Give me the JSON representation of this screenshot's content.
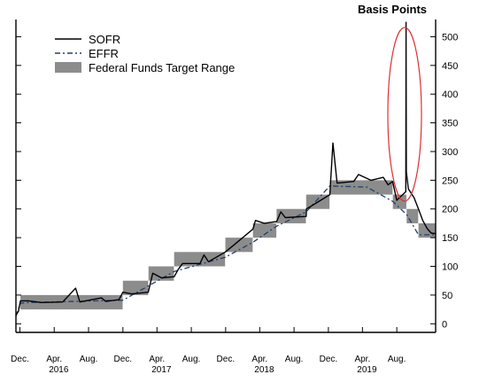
{
  "chart_data": {
    "type": "line",
    "unit_label": "Basis Points",
    "title": "",
    "xlabel": "",
    "ylabel": "",
    "ylim": [
      -15,
      530
    ],
    "y_ticks": [
      0,
      50,
      100,
      150,
      200,
      250,
      300,
      350,
      400,
      450,
      500
    ],
    "x_ticks_months": [
      "Dec.",
      "Apr.",
      "Aug.",
      "Dec.",
      "Apr.",
      "Aug.",
      "Dec.",
      "Apr.",
      "Aug.",
      "Dec.",
      "Apr.",
      "Aug."
    ],
    "x_ticks_years": [
      "2016",
      "2017",
      "2018",
      "2019"
    ],
    "x_range": [
      "2015-12-01",
      "2019-12-31"
    ],
    "legend_position": "top-left",
    "series": [
      {
        "name": "SOFR",
        "style": "solid",
        "color": "#000000",
        "x": [
          "2015-12-01",
          "2015-12-10",
          "2015-12-17",
          "2016-01-15",
          "2016-03-01",
          "2016-05-15",
          "2016-06-30",
          "2016-07-15",
          "2016-09-30",
          "2016-10-15",
          "2016-12-01",
          "2016-12-15",
          "2017-01-15",
          "2017-03-15",
          "2017-03-31",
          "2017-05-01",
          "2017-06-15",
          "2017-06-30",
          "2017-07-15",
          "2017-09-15",
          "2017-09-29",
          "2017-10-15",
          "2017-12-14",
          "2018-01-15",
          "2018-03-22",
          "2018-03-31",
          "2018-05-01",
          "2018-06-14",
          "2018-06-29",
          "2018-07-15",
          "2018-09-27",
          "2018-09-28",
          "2018-10-15",
          "2018-12-20",
          "2018-12-31",
          "2019-01-15",
          "2019-03-15",
          "2019-04-01",
          "2019-05-15",
          "2019-06-28",
          "2019-07-15",
          "2019-07-31",
          "2019-08-15",
          "2019-09-16",
          "2019-09-17",
          "2019-09-18",
          "2019-09-25",
          "2019-10-15",
          "2019-10-31",
          "2019-11-15",
          "2019-12-02",
          "2019-12-15",
          "2019-12-31"
        ],
        "y": [
          15,
          22,
          40,
          40,
          37,
          38,
          62,
          38,
          45,
          39,
          42,
          55,
          52,
          55,
          88,
          80,
          82,
          95,
          105,
          105,
          120,
          108,
          125,
          138,
          165,
          180,
          175,
          178,
          195,
          185,
          187,
          200,
          205,
          225,
          315,
          245,
          248,
          260,
          250,
          255,
          242,
          248,
          215,
          230,
          525,
          265,
          235,
          220,
          200,
          180,
          165,
          158,
          157
        ]
      },
      {
        "name": "EFFR",
        "style": "dashed",
        "color": "#1f3f6e",
        "x": [
          "2015-12-01",
          "2015-12-17",
          "2016-01-15",
          "2016-12-15",
          "2017-03-16",
          "2017-06-15",
          "2017-12-14",
          "2018-03-22",
          "2018-06-14",
          "2018-09-27",
          "2018-12-20",
          "2019-05-01",
          "2019-08-01",
          "2019-09-19",
          "2019-10-31",
          "2019-12-31"
        ],
        "y": [
          13,
          36,
          37,
          41,
          66,
          91,
          116,
          142,
          170,
          195,
          240,
          238,
          213,
          190,
          155,
          155
        ]
      }
    ],
    "band": {
      "name": "Federal Funds Target Range",
      "color": "#8c8c8c",
      "segments": [
        {
          "start": "2015-12-17",
          "end": "2016-12-14",
          "low": 25,
          "high": 50
        },
        {
          "start": "2016-12-15",
          "end": "2017-03-15",
          "low": 50,
          "high": 75
        },
        {
          "start": "2017-03-16",
          "end": "2017-06-14",
          "low": 75,
          "high": 100
        },
        {
          "start": "2017-06-15",
          "end": "2017-12-13",
          "low": 100,
          "high": 125
        },
        {
          "start": "2017-12-14",
          "end": "2018-03-21",
          "low": 125,
          "high": 150
        },
        {
          "start": "2018-03-22",
          "end": "2018-06-13",
          "low": 150,
          "high": 175
        },
        {
          "start": "2018-06-14",
          "end": "2018-09-26",
          "low": 175,
          "high": 200
        },
        {
          "start": "2018-09-27",
          "end": "2018-12-19",
          "low": 200,
          "high": 225
        },
        {
          "start": "2018-12-20",
          "end": "2019-07-31",
          "low": 225,
          "high": 250
        },
        {
          "start": "2019-08-01",
          "end": "2019-09-18",
          "low": 200,
          "high": 225
        },
        {
          "start": "2019-09-19",
          "end": "2019-10-30",
          "low": 175,
          "high": 200
        },
        {
          "start": "2019-10-31",
          "end": "2019-12-31",
          "low": 150,
          "high": 175
        }
      ]
    },
    "annotation": {
      "type": "ellipse",
      "color": "#e03030",
      "target": "2019-09-17 SOFR spike"
    }
  }
}
